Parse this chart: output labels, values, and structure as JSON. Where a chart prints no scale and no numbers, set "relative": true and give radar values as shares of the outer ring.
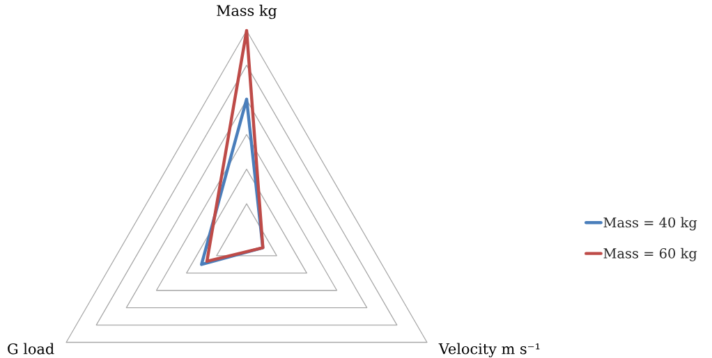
{
  "chart_data": {
    "type": "radar",
    "relative": true,
    "grid": true,
    "legend": "right",
    "categories": [
      "Mass kg",
      "Velocity m s⁻¹",
      "G load"
    ],
    "series": [
      {
        "name": "Mass = 40 kg",
        "color": "#4a7ebb",
        "values": [
          0.67,
          0.09,
          0.25
        ]
      },
      {
        "name": "Mass = 60 kg",
        "color": "#be4b48",
        "values": [
          1,
          0.09,
          0.22
        ]
      }
    ]
  }
}
